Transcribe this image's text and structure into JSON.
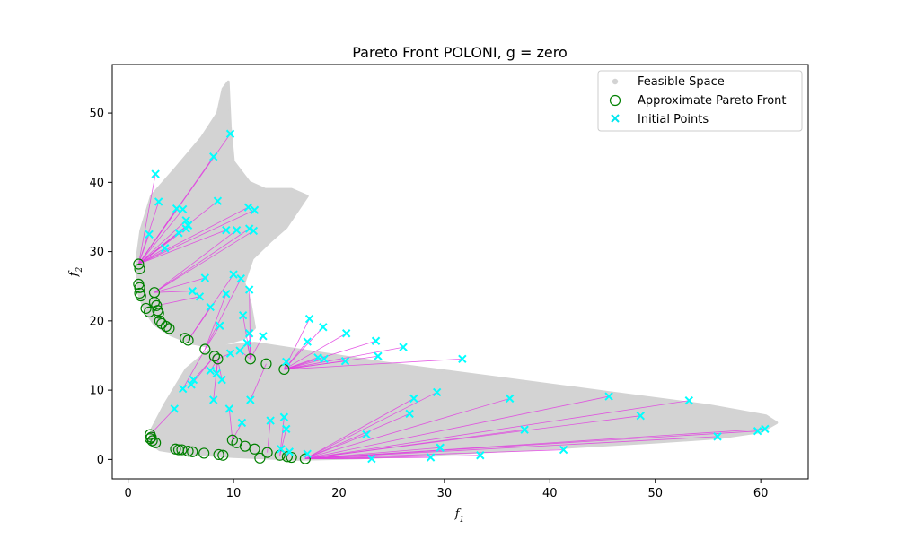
{
  "chart_data": {
    "type": "scatter",
    "title": "Pareto Front POLONI, g = zero",
    "xlabel": "f",
    "xlabel_sub": "1",
    "ylabel": "f",
    "ylabel_sub": "2",
    "xlim": [
      -1.5,
      64.5
    ],
    "ylim": [
      -2.8,
      57.0
    ],
    "xticks": [
      0,
      10,
      20,
      30,
      40,
      50,
      60
    ],
    "yticks": [
      0,
      10,
      20,
      30,
      40,
      50
    ],
    "grid": false,
    "legend_position": "top-right",
    "colors": {
      "feasible": "#d3d3d3",
      "front_edge": "#008000",
      "initial": "#00ffff",
      "link": "#e040e0"
    },
    "legend": [
      {
        "key": "feasible",
        "label": "Feasible Space",
        "marker": "dot"
      },
      {
        "key": "front",
        "label": "Approximate Pareto Front",
        "marker": "circle"
      },
      {
        "key": "initial",
        "label": "Initial Points",
        "marker": "x"
      }
    ],
    "feasible_space": {
      "lower_region": [
        [
          2.0,
          2.5
        ],
        [
          3.0,
          1.4
        ],
        [
          5.0,
          0.9
        ],
        [
          10.0,
          0.4
        ],
        [
          16.0,
          0.0
        ],
        [
          22.0,
          0.2
        ],
        [
          30.0,
          0.8
        ],
        [
          40.0,
          1.6
        ],
        [
          50.0,
          2.5
        ],
        [
          56.0,
          3.1
        ],
        [
          60.0,
          4.0
        ],
        [
          61.5,
          5.3
        ],
        [
          60.5,
          6.3
        ],
        [
          55.0,
          7.8
        ],
        [
          45.0,
          9.8
        ],
        [
          35.0,
          11.8
        ],
        [
          25.0,
          13.8
        ],
        [
          18.0,
          15.4
        ],
        [
          12.0,
          16.8
        ],
        [
          8.0,
          16.2
        ],
        [
          5.5,
          13.0
        ],
        [
          3.5,
          8.0
        ],
        [
          2.3,
          4.5
        ]
      ],
      "upper_region": [
        [
          0.8,
          28.5
        ],
        [
          1.0,
          24.0
        ],
        [
          1.6,
          21.5
        ],
        [
          2.5,
          19.5
        ],
        [
          4.0,
          18.0
        ],
        [
          6.0,
          16.8
        ],
        [
          8.0,
          16.2
        ],
        [
          11.0,
          17.5
        ],
        [
          12.0,
          19.0
        ],
        [
          11.6,
          22.5
        ],
        [
          11.0,
          25.5
        ],
        [
          11.8,
          29.0
        ],
        [
          13.5,
          31.5
        ],
        [
          15.0,
          33.5
        ],
        [
          17.0,
          38.0
        ],
        [
          15.5,
          39.0
        ],
        [
          13.0,
          39.0
        ],
        [
          11.5,
          40.0
        ],
        [
          10.0,
          43.0
        ],
        [
          9.7,
          48.0
        ],
        [
          9.5,
          54.5
        ],
        [
          9.0,
          53.5
        ],
        [
          8.5,
          50.0
        ],
        [
          7.0,
          46.5
        ],
        [
          4.5,
          42.0
        ],
        [
          2.2,
          38.0
        ],
        [
          1.2,
          33.0
        ]
      ]
    },
    "series": [
      {
        "name": "Approximate Pareto Front",
        "points": [
          [
            1.0,
            28.2
          ],
          [
            1.1,
            27.5
          ],
          [
            1.0,
            25.3
          ],
          [
            1.1,
            24.8
          ],
          [
            1.1,
            24.0
          ],
          [
            1.2,
            23.6
          ],
          [
            2.5,
            24.1
          ],
          [
            2.5,
            22.7
          ],
          [
            2.7,
            22.2
          ],
          [
            2.8,
            21.5
          ],
          [
            1.7,
            21.8
          ],
          [
            2.0,
            21.3
          ],
          [
            2.9,
            21.1
          ],
          [
            3.0,
            20.0
          ],
          [
            3.2,
            19.6
          ],
          [
            3.6,
            19.2
          ],
          [
            3.9,
            18.9
          ],
          [
            5.4,
            17.5
          ],
          [
            5.7,
            17.2
          ],
          [
            7.3,
            15.9
          ],
          [
            8.2,
            14.9
          ],
          [
            8.5,
            14.5
          ],
          [
            11.6,
            14.5
          ],
          [
            13.1,
            13.8
          ],
          [
            14.8,
            13.0
          ],
          [
            2.1,
            3.6
          ],
          [
            2.2,
            3.2
          ],
          [
            2.1,
            3.0
          ],
          [
            2.3,
            2.7
          ],
          [
            2.6,
            2.4
          ],
          [
            4.5,
            1.5
          ],
          [
            4.8,
            1.4
          ],
          [
            5.1,
            1.4
          ],
          [
            5.7,
            1.2
          ],
          [
            6.1,
            1.1
          ],
          [
            7.2,
            0.9
          ],
          [
            8.6,
            0.7
          ],
          [
            9.0,
            0.6
          ],
          [
            9.9,
            2.8
          ],
          [
            10.3,
            2.4
          ],
          [
            11.1,
            1.9
          ],
          [
            12.0,
            1.5
          ],
          [
            12.5,
            0.2
          ],
          [
            13.2,
            1.0
          ],
          [
            14.4,
            0.6
          ],
          [
            15.1,
            0.4
          ],
          [
            15.5,
            0.3
          ],
          [
            16.8,
            0.1
          ]
        ]
      },
      {
        "name": "Initial Points",
        "points": [
          [
            2.0,
            32.5
          ],
          [
            2.6,
            41.2
          ],
          [
            2.9,
            37.2
          ],
          [
            3.5,
            30.5
          ],
          [
            4.6,
            36.2
          ],
          [
            5.2,
            36.1
          ],
          [
            5.5,
            34.5
          ],
          [
            5.7,
            33.8
          ],
          [
            5.5,
            33.3
          ],
          [
            4.8,
            32.7
          ],
          [
            8.1,
            43.7
          ],
          [
            8.5,
            37.3
          ],
          [
            9.3,
            33.1
          ],
          [
            10.3,
            33.1
          ],
          [
            9.7,
            47.0
          ],
          [
            11.4,
            36.4
          ],
          [
            12.0,
            36.0
          ],
          [
            11.5,
            33.3
          ],
          [
            11.9,
            33.0
          ],
          [
            10.0,
            26.7
          ],
          [
            10.7,
            26.1
          ],
          [
            11.5,
            24.5
          ],
          [
            9.3,
            23.9
          ],
          [
            7.3,
            26.2
          ],
          [
            6.1,
            24.3
          ],
          [
            6.8,
            23.5
          ],
          [
            7.8,
            22.0
          ],
          [
            8.7,
            19.3
          ],
          [
            10.9,
            20.8
          ],
          [
            11.5,
            18.2
          ],
          [
            12.8,
            17.8
          ],
          [
            17.2,
            20.3
          ],
          [
            18.5,
            19.1
          ],
          [
            20.7,
            18.2
          ],
          [
            17.0,
            17.0
          ],
          [
            15.0,
            14.1
          ],
          [
            18.0,
            14.7
          ],
          [
            18.6,
            14.5
          ],
          [
            20.6,
            14.2
          ],
          [
            23.5,
            17.1
          ],
          [
            23.7,
            14.9
          ],
          [
            26.1,
            16.2
          ],
          [
            31.7,
            14.5
          ],
          [
            7.8,
            12.8
          ],
          [
            8.4,
            12.4
          ],
          [
            8.9,
            11.5
          ],
          [
            6.2,
            11.5
          ],
          [
            6.0,
            10.8
          ],
          [
            5.2,
            10.2
          ],
          [
            9.7,
            15.3
          ],
          [
            10.6,
            15.7
          ],
          [
            11.3,
            16.8
          ],
          [
            8.1,
            8.6
          ],
          [
            9.6,
            7.3
          ],
          [
            11.6,
            8.6
          ],
          [
            4.4,
            7.3
          ],
          [
            10.8,
            5.3
          ],
          [
            13.5,
            5.6
          ],
          [
            14.8,
            6.1
          ],
          [
            15.0,
            4.4
          ],
          [
            27.1,
            8.8
          ],
          [
            29.3,
            9.7
          ],
          [
            26.7,
            6.6
          ],
          [
            36.2,
            8.8
          ],
          [
            45.6,
            9.1
          ],
          [
            48.6,
            6.3
          ],
          [
            53.2,
            8.5
          ],
          [
            37.6,
            4.3
          ],
          [
            22.6,
            3.6
          ],
          [
            29.6,
            1.7
          ],
          [
            28.7,
            0.3
          ],
          [
            33.4,
            0.6
          ],
          [
            23.1,
            0.1
          ],
          [
            41.3,
            1.4
          ],
          [
            55.9,
            3.3
          ],
          [
            59.7,
            4.1
          ],
          [
            60.4,
            4.4
          ],
          [
            14.5,
            1.5
          ],
          [
            15.3,
            1.1
          ],
          [
            17.0,
            0.8
          ]
        ]
      }
    ]
  }
}
